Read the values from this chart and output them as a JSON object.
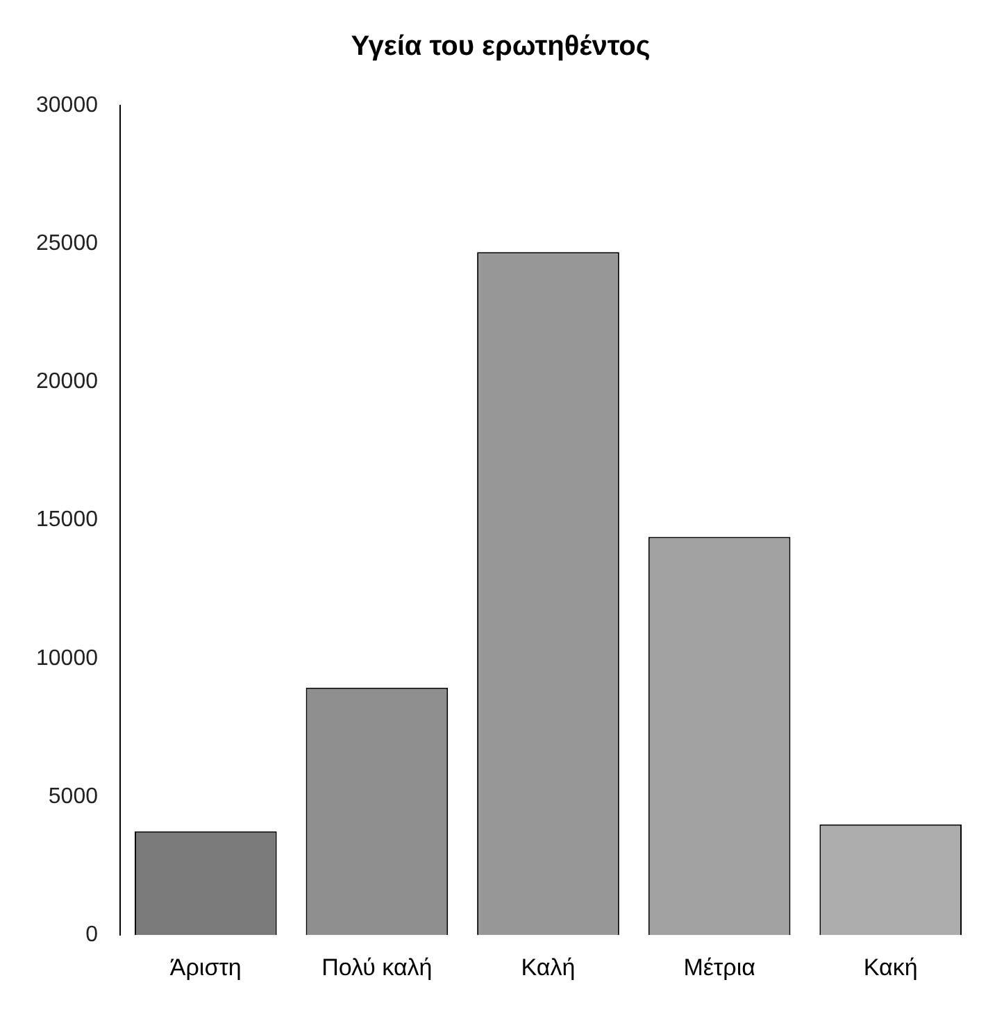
{
  "chart_data": {
    "type": "bar",
    "title": "Υγεία του ερωτηθέντος",
    "categories": [
      "Άριστη",
      "Πολύ καλή",
      "Καλή",
      "Μέτρια",
      "Κακή"
    ],
    "values": [
      3750,
      8950,
      24700,
      14400,
      4000
    ],
    "colors": [
      "#7a7a7a",
      "#8f8f8f",
      "#989898",
      "#a2a2a2",
      "#adadad"
    ],
    "ylim": [
      0,
      30000
    ],
    "yticks": [
      0,
      5000,
      10000,
      15000,
      20000,
      25000,
      30000
    ],
    "grid": false
  }
}
